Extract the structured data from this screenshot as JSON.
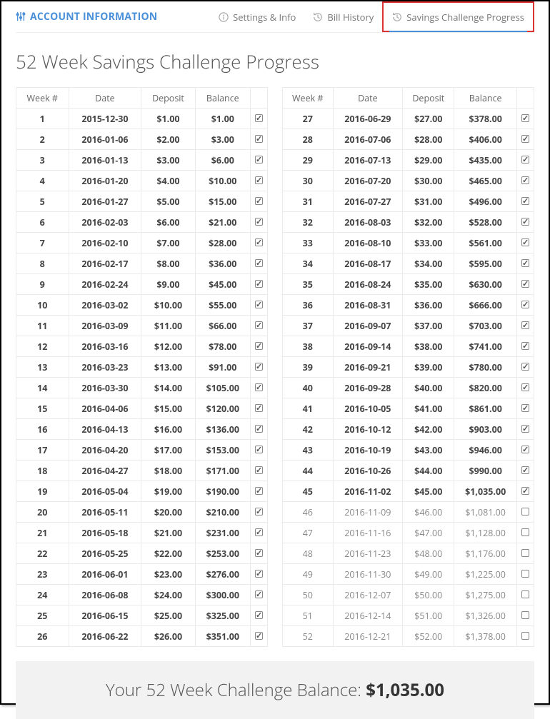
{
  "brand": {
    "label": "ACCOUNT INFORMATION",
    "icon": "sliders-icon",
    "color": "#4a90d9"
  },
  "tabs": [
    {
      "id": "settings",
      "label": "Settings & Info",
      "icon": "info-icon",
      "active": false
    },
    {
      "id": "bill",
      "label": "Bill History",
      "icon": "history-icon",
      "active": false
    },
    {
      "id": "savings",
      "label": "Savings Challenge Progress",
      "icon": "history-icon",
      "active": true
    }
  ],
  "page_title": "52 Week Savings Challenge Progress",
  "columns": [
    "Week #",
    "Date",
    "Deposit",
    "Balance",
    ""
  ],
  "rows_left": [
    {
      "week": "1",
      "date": "2015-12-30",
      "deposit": "$1.00",
      "balance": "$1.00",
      "done": true
    },
    {
      "week": "2",
      "date": "2016-01-06",
      "deposit": "$2.00",
      "balance": "$3.00",
      "done": true
    },
    {
      "week": "3",
      "date": "2016-01-13",
      "deposit": "$3.00",
      "balance": "$6.00",
      "done": true
    },
    {
      "week": "4",
      "date": "2016-01-20",
      "deposit": "$4.00",
      "balance": "$10.00",
      "done": true
    },
    {
      "week": "5",
      "date": "2016-01-27",
      "deposit": "$5.00",
      "balance": "$15.00",
      "done": true
    },
    {
      "week": "6",
      "date": "2016-02-03",
      "deposit": "$6.00",
      "balance": "$21.00",
      "done": true
    },
    {
      "week": "7",
      "date": "2016-02-10",
      "deposit": "$7.00",
      "balance": "$28.00",
      "done": true
    },
    {
      "week": "8",
      "date": "2016-02-17",
      "deposit": "$8.00",
      "balance": "$36.00",
      "done": true
    },
    {
      "week": "9",
      "date": "2016-02-24",
      "deposit": "$9.00",
      "balance": "$45.00",
      "done": true
    },
    {
      "week": "10",
      "date": "2016-03-02",
      "deposit": "$10.00",
      "balance": "$55.00",
      "done": true
    },
    {
      "week": "11",
      "date": "2016-03-09",
      "deposit": "$11.00",
      "balance": "$66.00",
      "done": true
    },
    {
      "week": "12",
      "date": "2016-03-16",
      "deposit": "$12.00",
      "balance": "$78.00",
      "done": true
    },
    {
      "week": "13",
      "date": "2016-03-23",
      "deposit": "$13.00",
      "balance": "$91.00",
      "done": true
    },
    {
      "week": "14",
      "date": "2016-03-30",
      "deposit": "$14.00",
      "balance": "$105.00",
      "done": true
    },
    {
      "week": "15",
      "date": "2016-04-06",
      "deposit": "$15.00",
      "balance": "$120.00",
      "done": true
    },
    {
      "week": "16",
      "date": "2016-04-13",
      "deposit": "$16.00",
      "balance": "$136.00",
      "done": true
    },
    {
      "week": "17",
      "date": "2016-04-20",
      "deposit": "$17.00",
      "balance": "$153.00",
      "done": true
    },
    {
      "week": "18",
      "date": "2016-04-27",
      "deposit": "$18.00",
      "balance": "$171.00",
      "done": true
    },
    {
      "week": "19",
      "date": "2016-05-04",
      "deposit": "$19.00",
      "balance": "$190.00",
      "done": true
    },
    {
      "week": "20",
      "date": "2016-05-11",
      "deposit": "$20.00",
      "balance": "$210.00",
      "done": true
    },
    {
      "week": "21",
      "date": "2016-05-18",
      "deposit": "$21.00",
      "balance": "$231.00",
      "done": true
    },
    {
      "week": "22",
      "date": "2016-05-25",
      "deposit": "$22.00",
      "balance": "$253.00",
      "done": true
    },
    {
      "week": "23",
      "date": "2016-06-01",
      "deposit": "$23.00",
      "balance": "$276.00",
      "done": true
    },
    {
      "week": "24",
      "date": "2016-06-08",
      "deposit": "$24.00",
      "balance": "$300.00",
      "done": true
    },
    {
      "week": "25",
      "date": "2016-06-15",
      "deposit": "$25.00",
      "balance": "$325.00",
      "done": true
    },
    {
      "week": "26",
      "date": "2016-06-22",
      "deposit": "$26.00",
      "balance": "$351.00",
      "done": true
    }
  ],
  "rows_right": [
    {
      "week": "27",
      "date": "2016-06-29",
      "deposit": "$27.00",
      "balance": "$378.00",
      "done": true
    },
    {
      "week": "28",
      "date": "2016-07-06",
      "deposit": "$28.00",
      "balance": "$406.00",
      "done": true
    },
    {
      "week": "29",
      "date": "2016-07-13",
      "deposit": "$29.00",
      "balance": "$435.00",
      "done": true
    },
    {
      "week": "30",
      "date": "2016-07-20",
      "deposit": "$30.00",
      "balance": "$465.00",
      "done": true
    },
    {
      "week": "31",
      "date": "2016-07-27",
      "deposit": "$31.00",
      "balance": "$496.00",
      "done": true
    },
    {
      "week": "32",
      "date": "2016-08-03",
      "deposit": "$32.00",
      "balance": "$528.00",
      "done": true
    },
    {
      "week": "33",
      "date": "2016-08-10",
      "deposit": "$33.00",
      "balance": "$561.00",
      "done": true
    },
    {
      "week": "34",
      "date": "2016-08-17",
      "deposit": "$34.00",
      "balance": "$595.00",
      "done": true
    },
    {
      "week": "35",
      "date": "2016-08-24",
      "deposit": "$35.00",
      "balance": "$630.00",
      "done": true
    },
    {
      "week": "36",
      "date": "2016-08-31",
      "deposit": "$36.00",
      "balance": "$666.00",
      "done": true
    },
    {
      "week": "37",
      "date": "2016-09-07",
      "deposit": "$37.00",
      "balance": "$703.00",
      "done": true
    },
    {
      "week": "38",
      "date": "2016-09-14",
      "deposit": "$38.00",
      "balance": "$741.00",
      "done": true
    },
    {
      "week": "39",
      "date": "2016-09-21",
      "deposit": "$39.00",
      "balance": "$780.00",
      "done": true
    },
    {
      "week": "40",
      "date": "2016-09-28",
      "deposit": "$40.00",
      "balance": "$820.00",
      "done": true
    },
    {
      "week": "41",
      "date": "2016-10-05",
      "deposit": "$41.00",
      "balance": "$861.00",
      "done": true
    },
    {
      "week": "42",
      "date": "2016-10-12",
      "deposit": "$42.00",
      "balance": "$903.00",
      "done": true
    },
    {
      "week": "43",
      "date": "2016-10-19",
      "deposit": "$43.00",
      "balance": "$946.00",
      "done": true
    },
    {
      "week": "44",
      "date": "2016-10-26",
      "deposit": "$44.00",
      "balance": "$990.00",
      "done": true
    },
    {
      "week": "45",
      "date": "2016-11-02",
      "deposit": "$45.00",
      "balance": "$1,035.00",
      "done": true
    },
    {
      "week": "46",
      "date": "2016-11-09",
      "deposit": "$46.00",
      "balance": "$1,081.00",
      "done": false
    },
    {
      "week": "47",
      "date": "2016-11-16",
      "deposit": "$47.00",
      "balance": "$1,128.00",
      "done": false
    },
    {
      "week": "48",
      "date": "2016-11-23",
      "deposit": "$48.00",
      "balance": "$1,176.00",
      "done": false
    },
    {
      "week": "49",
      "date": "2016-11-30",
      "deposit": "$49.00",
      "balance": "$1,225.00",
      "done": false
    },
    {
      "week": "50",
      "date": "2016-12-07",
      "deposit": "$50.00",
      "balance": "$1,275.00",
      "done": false
    },
    {
      "week": "51",
      "date": "2016-12-14",
      "deposit": "$51.00",
      "balance": "$1,326.00",
      "done": false
    },
    {
      "week": "52",
      "date": "2016-12-21",
      "deposit": "$52.00",
      "balance": "$1,378.00",
      "done": false
    }
  ],
  "summary": {
    "label": "Your 52 Week Challenge Balance: ",
    "amount": "$1,035.00"
  },
  "style": {
    "accent": "#4a90d9",
    "highlight_border": "#d33",
    "row_border": "#eaeaea",
    "muted_text": "#888",
    "bold_text": "#444",
    "summary_bg": "#f2f2f2"
  }
}
